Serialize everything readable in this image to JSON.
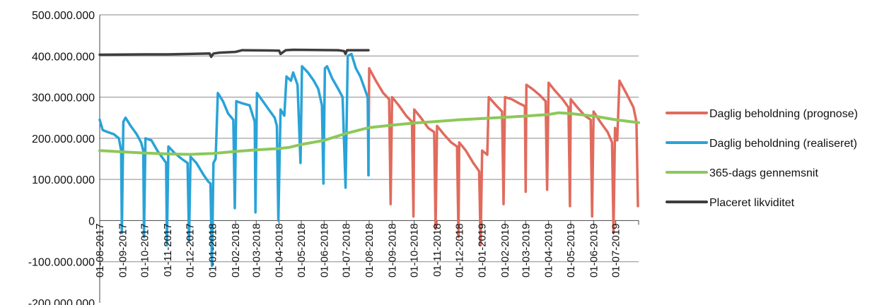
{
  "chart_data": {
    "type": "line",
    "title": "",
    "xlabel": "",
    "ylabel": "",
    "ylim": [
      -200000000,
      500000000
    ],
    "y_ticks": [
      500000000,
      400000000,
      300000000,
      200000000,
      100000000,
      0,
      -100000000,
      -200000000
    ],
    "y_tick_labels": [
      "500.000.000",
      "400.000.000",
      "300.000.000",
      "200.000.000",
      "100.000.000",
      "0",
      "-100.000.000",
      "-200.000.000"
    ],
    "x_range": [
      "2017-08-01",
      "2019-08-01"
    ],
    "x_tick_labels": [
      "01-08-2017",
      "01-09-2017",
      "01-10-2017",
      "01-11-2017",
      "01-12-2017",
      "01-01-2018",
      "01-02-2018",
      "01-03-2018",
      "01-04-2018",
      "01-05-2018",
      "01-06-2018",
      "01-07-2018",
      "01-08-2018",
      "01-09-2018",
      "01-10-2018",
      "01-11-2018",
      "01-12-2018",
      "01-01-2019",
      "01-02-2019",
      "01-03-2019",
      "01-04-2019",
      "01-05-2019",
      "01-06-2019",
      "01-07-2019"
    ],
    "grid": "horizontal",
    "legend_position": "right",
    "series": [
      {
        "name": "Daglig beholdning (prognose)",
        "color": "#e06b5d",
        "points": [
          [
            "2018-07-31",
            110000000
          ],
          [
            "2018-08-01",
            370000000
          ],
          [
            "2018-08-10",
            340000000
          ],
          [
            "2018-08-20",
            310000000
          ],
          [
            "2018-08-28",
            295000000
          ],
          [
            "2018-08-30",
            40000000
          ],
          [
            "2018-09-01",
            300000000
          ],
          [
            "2018-09-10",
            280000000
          ],
          [
            "2018-09-20",
            255000000
          ],
          [
            "2018-09-28",
            240000000
          ],
          [
            "2018-09-30",
            10000000
          ],
          [
            "2018-10-01",
            270000000
          ],
          [
            "2018-10-10",
            250000000
          ],
          [
            "2018-10-20",
            225000000
          ],
          [
            "2018-10-28",
            215000000
          ],
          [
            "2018-10-30",
            -20000000
          ],
          [
            "2018-11-01",
            230000000
          ],
          [
            "2018-11-10",
            210000000
          ],
          [
            "2018-11-20",
            190000000
          ],
          [
            "2018-11-28",
            180000000
          ],
          [
            "2018-11-30",
            -40000000
          ],
          [
            "2018-12-01",
            190000000
          ],
          [
            "2018-12-10",
            170000000
          ],
          [
            "2018-12-20",
            140000000
          ],
          [
            "2018-12-28",
            120000000
          ],
          [
            "2018-12-30",
            -60000000
          ],
          [
            "2019-01-01",
            170000000
          ],
          [
            "2019-01-08",
            160000000
          ],
          [
            "2019-01-10",
            300000000
          ],
          [
            "2019-01-20",
            280000000
          ],
          [
            "2019-01-28",
            265000000
          ],
          [
            "2019-01-30",
            40000000
          ],
          [
            "2019-02-01",
            300000000
          ],
          [
            "2019-02-10",
            295000000
          ],
          [
            "2019-02-20",
            285000000
          ],
          [
            "2019-02-28",
            278000000
          ],
          [
            "2019-03-01",
            70000000
          ],
          [
            "2019-03-02",
            330000000
          ],
          [
            "2019-03-10",
            320000000
          ],
          [
            "2019-03-20",
            305000000
          ],
          [
            "2019-03-28",
            290000000
          ],
          [
            "2019-03-30",
            75000000
          ],
          [
            "2019-04-01",
            335000000
          ],
          [
            "2019-04-10",
            315000000
          ],
          [
            "2019-04-20",
            295000000
          ],
          [
            "2019-04-28",
            275000000
          ],
          [
            "2019-04-30",
            35000000
          ],
          [
            "2019-05-01",
            295000000
          ],
          [
            "2019-05-10",
            275000000
          ],
          [
            "2019-05-20",
            255000000
          ],
          [
            "2019-05-28",
            245000000
          ],
          [
            "2019-05-30",
            10000000
          ],
          [
            "2019-06-01",
            265000000
          ],
          [
            "2019-06-10",
            240000000
          ],
          [
            "2019-06-20",
            215000000
          ],
          [
            "2019-06-26",
            190000000
          ],
          [
            "2019-06-28",
            -30000000
          ],
          [
            "2019-06-30",
            225000000
          ],
          [
            "2019-07-03",
            195000000
          ],
          [
            "2019-07-06",
            340000000
          ],
          [
            "2019-07-15",
            310000000
          ],
          [
            "2019-07-25",
            275000000
          ],
          [
            "2019-07-29",
            240000000
          ],
          [
            "2019-07-31",
            35000000
          ]
        ]
      },
      {
        "name": "Daglig beholdning (realiseret)",
        "color": "#29a3d8",
        "points": [
          [
            "2017-08-01",
            245000000
          ],
          [
            "2017-08-05",
            220000000
          ],
          [
            "2017-08-12",
            215000000
          ],
          [
            "2017-08-20",
            210000000
          ],
          [
            "2017-08-27",
            200000000
          ],
          [
            "2017-08-30",
            170000000
          ],
          [
            "2017-08-31",
            -30000000
          ],
          [
            "2017-09-02",
            240000000
          ],
          [
            "2017-09-05",
            250000000
          ],
          [
            "2017-09-12",
            230000000
          ],
          [
            "2017-09-20",
            210000000
          ],
          [
            "2017-09-26",
            190000000
          ],
          [
            "2017-09-29",
            170000000
          ],
          [
            "2017-09-30",
            -40000000
          ],
          [
            "2017-10-02",
            200000000
          ],
          [
            "2017-10-10",
            195000000
          ],
          [
            "2017-10-18",
            170000000
          ],
          [
            "2017-10-26",
            150000000
          ],
          [
            "2017-10-30",
            140000000
          ],
          [
            "2017-10-31",
            -60000000
          ],
          [
            "2017-11-02",
            180000000
          ],
          [
            "2017-11-10",
            165000000
          ],
          [
            "2017-11-20",
            150000000
          ],
          [
            "2017-11-28",
            140000000
          ],
          [
            "2017-11-30",
            -50000000
          ],
          [
            "2017-12-02",
            155000000
          ],
          [
            "2017-12-10",
            140000000
          ],
          [
            "2017-12-20",
            110000000
          ],
          [
            "2017-12-26",
            95000000
          ],
          [
            "2017-12-29",
            90000000
          ],
          [
            "2017-12-31",
            -110000000
          ],
          [
            "2018-01-02",
            140000000
          ],
          [
            "2018-01-05",
            150000000
          ],
          [
            "2018-01-08",
            310000000
          ],
          [
            "2018-01-15",
            290000000
          ],
          [
            "2018-01-22",
            260000000
          ],
          [
            "2018-01-29",
            245000000
          ],
          [
            "2018-01-31",
            30000000
          ],
          [
            "2018-02-02",
            290000000
          ],
          [
            "2018-02-10",
            285000000
          ],
          [
            "2018-02-20",
            280000000
          ],
          [
            "2018-02-27",
            240000000
          ],
          [
            "2018-02-28",
            20000000
          ],
          [
            "2018-03-02",
            310000000
          ],
          [
            "2018-03-10",
            290000000
          ],
          [
            "2018-03-18",
            270000000
          ],
          [
            "2018-03-26",
            250000000
          ],
          [
            "2018-03-29",
            230000000
          ],
          [
            "2018-03-31",
            0
          ],
          [
            "2018-04-03",
            270000000
          ],
          [
            "2018-04-08",
            255000000
          ],
          [
            "2018-04-11",
            350000000
          ],
          [
            "2018-04-17",
            340000000
          ],
          [
            "2018-04-20",
            360000000
          ],
          [
            "2018-04-26",
            330000000
          ],
          [
            "2018-04-30",
            140000000
          ],
          [
            "2018-05-02",
            375000000
          ],
          [
            "2018-05-10",
            360000000
          ],
          [
            "2018-05-18",
            340000000
          ],
          [
            "2018-05-24",
            320000000
          ],
          [
            "2018-05-29",
            280000000
          ],
          [
            "2018-05-31",
            90000000
          ],
          [
            "2018-06-02",
            370000000
          ],
          [
            "2018-06-05",
            375000000
          ],
          [
            "2018-06-12",
            345000000
          ],
          [
            "2018-06-20",
            320000000
          ],
          [
            "2018-06-26",
            300000000
          ],
          [
            "2018-06-30",
            80000000
          ],
          [
            "2018-07-03",
            400000000
          ],
          [
            "2018-07-08",
            405000000
          ],
          [
            "2018-07-14",
            370000000
          ],
          [
            "2018-07-20",
            350000000
          ],
          [
            "2018-07-26",
            320000000
          ],
          [
            "2018-07-30",
            300000000
          ],
          [
            "2018-07-31",
            110000000
          ]
        ]
      },
      {
        "name": "365-dags gennemsnit",
        "color": "#8dc85a",
        "points": [
          [
            "2017-08-01",
            170000000
          ],
          [
            "2017-09-01",
            167000000
          ],
          [
            "2017-10-01",
            164000000
          ],
          [
            "2017-11-01",
            162000000
          ],
          [
            "2017-12-01",
            161000000
          ],
          [
            "2018-01-01",
            163000000
          ],
          [
            "2018-02-01",
            168000000
          ],
          [
            "2018-03-01",
            172000000
          ],
          [
            "2018-04-01",
            175000000
          ],
          [
            "2018-04-15",
            178000000
          ],
          [
            "2018-05-01",
            185000000
          ],
          [
            "2018-06-01",
            195000000
          ],
          [
            "2018-07-01",
            212000000
          ],
          [
            "2018-08-01",
            226000000
          ],
          [
            "2018-09-01",
            232000000
          ],
          [
            "2018-10-01",
            237000000
          ],
          [
            "2018-11-01",
            241000000
          ],
          [
            "2018-12-01",
            245000000
          ],
          [
            "2019-01-01",
            248000000
          ],
          [
            "2019-02-01",
            251000000
          ],
          [
            "2019-03-01",
            254000000
          ],
          [
            "2019-04-01",
            258000000
          ],
          [
            "2019-04-15",
            262000000
          ],
          [
            "2019-05-01",
            260000000
          ],
          [
            "2019-06-01",
            254000000
          ],
          [
            "2019-07-01",
            245000000
          ],
          [
            "2019-08-01",
            238000000
          ]
        ]
      },
      {
        "name": "Placeret likviditet",
        "color": "#3d3d3d",
        "points": [
          [
            "2017-08-01",
            403000000
          ],
          [
            "2017-10-01",
            404000000
          ],
          [
            "2017-11-01",
            404000000
          ],
          [
            "2017-12-01",
            405000000
          ],
          [
            "2017-12-28",
            406000000
          ],
          [
            "2017-12-30",
            398000000
          ],
          [
            "2018-01-02",
            406000000
          ],
          [
            "2018-01-10",
            408000000
          ],
          [
            "2018-02-01",
            410000000
          ],
          [
            "2018-02-10",
            414000000
          ],
          [
            "2018-04-01",
            413000000
          ],
          [
            "2018-04-03",
            405000000
          ],
          [
            "2018-04-10",
            414000000
          ],
          [
            "2018-04-20",
            415000000
          ],
          [
            "2018-06-20",
            414000000
          ],
          [
            "2018-06-28",
            412000000
          ],
          [
            "2018-06-30",
            405000000
          ],
          [
            "2018-07-02",
            414000000
          ],
          [
            "2018-07-31",
            414000000
          ]
        ]
      }
    ]
  }
}
